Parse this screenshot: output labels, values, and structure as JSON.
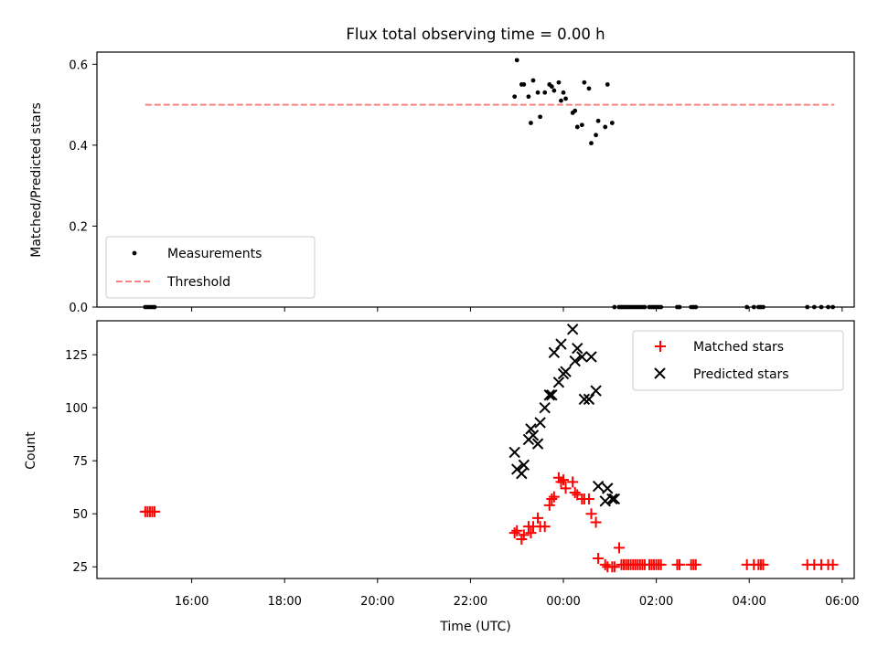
{
  "chart_data": {
    "title": "Flux total observing time = 0.00 h",
    "xlabel": "Time (UTC)",
    "x_tick_labels": [
      "16:00",
      "18:00",
      "20:00",
      "22:00",
      "00:00",
      "02:00",
      "04:00",
      "06:00"
    ],
    "top": {
      "type": "scatter",
      "ylabel": "Matched/Predicted stars",
      "ylim": [
        0,
        0.63
      ],
      "y_tick_labels": [
        "0.0",
        "0.2",
        "0.4",
        "0.6"
      ],
      "legend_position": "lower-left",
      "legend": [
        "Measurements",
        "Threshold"
      ],
      "threshold": {
        "name": "Threshold",
        "value": 0.5,
        "x_range": [
          "15:00",
          "29:50"
        ],
        "color": "#ff8080"
      },
      "measurements": {
        "name": "Measurements",
        "color": "#000000",
        "x": [
          "15:00",
          "15:03",
          "15:06",
          "15:09",
          "15:12",
          "22:57",
          "23:00",
          "23:06",
          "23:09",
          "23:15",
          "23:18",
          "23:21",
          "23:27",
          "23:30",
          "23:36",
          "23:42",
          "23:45",
          "23:48",
          "23:54",
          "23:57",
          "24:00",
          "24:03",
          "24:12",
          "24:15",
          "24:18",
          "24:24",
          "24:27",
          "24:33",
          "24:36",
          "24:42",
          "24:45",
          "24:54",
          "24:57",
          "25:03",
          "25:06",
          "25:12",
          "25:15",
          "25:18",
          "25:21",
          "25:24",
          "25:27",
          "25:30",
          "25:33",
          "25:36",
          "25:39",
          "25:42",
          "25:45",
          "25:51",
          "25:54",
          "25:57",
          "26:00",
          "26:03",
          "26:06",
          "26:27",
          "26:30",
          "26:45",
          "26:48",
          "26:51",
          "27:57",
          "28:06",
          "28:12",
          "28:15",
          "28:18",
          "29:15",
          "29:24",
          "29:33",
          "29:42",
          "29:48"
        ],
        "y": [
          0,
          0,
          0,
          0,
          0,
          0.52,
          0.61,
          0.55,
          0.55,
          0.52,
          0.455,
          0.56,
          0.53,
          0.47,
          0.53,
          0.55,
          0.545,
          0.535,
          0.555,
          0.51,
          0.53,
          0.515,
          0.48,
          0.485,
          0.445,
          0.45,
          0.555,
          0.54,
          0.405,
          0.425,
          0.46,
          0.445,
          0.55,
          0.455,
          0,
          0,
          0,
          0,
          0,
          0,
          0,
          0,
          0,
          0,
          0,
          0,
          0,
          0,
          0,
          0,
          0,
          0,
          0,
          0,
          0,
          0,
          0,
          0,
          0,
          0,
          0,
          0,
          0,
          0,
          0,
          0,
          0,
          0
        ]
      }
    },
    "bottom": {
      "type": "scatter",
      "ylabel": "Count",
      "ylim": [
        19.5,
        141
      ],
      "y_tick_labels": [
        "25",
        "50",
        "75",
        "100",
        "125"
      ],
      "legend_position": "top-right",
      "legend": [
        "Matched stars",
        "Predicted stars"
      ],
      "matched": {
        "name": "Matched stars",
        "color": "#ff0000",
        "x": [
          "15:00",
          "15:03",
          "15:06",
          "15:09",
          "15:12",
          "22:57",
          "23:00",
          "23:06",
          "23:09",
          "23:15",
          "23:18",
          "23:21",
          "23:27",
          "23:30",
          "23:36",
          "23:42",
          "23:45",
          "23:48",
          "23:54",
          "23:57",
          "24:00",
          "24:03",
          "24:12",
          "24:15",
          "24:18",
          "24:24",
          "24:27",
          "24:33",
          "24:36",
          "24:42",
          "24:45",
          "24:54",
          "24:57",
          "25:03",
          "25:06",
          "25:12",
          "25:15",
          "25:18",
          "25:21",
          "25:24",
          "25:27",
          "25:30",
          "25:33",
          "25:36",
          "25:39",
          "25:42",
          "25:45",
          "25:51",
          "25:54",
          "25:57",
          "26:00",
          "26:03",
          "26:06",
          "26:27",
          "26:30",
          "26:45",
          "26:48",
          "26:51",
          "27:57",
          "28:06",
          "28:12",
          "28:15",
          "28:18",
          "29:15",
          "29:24",
          "29:33",
          "29:42",
          "29:48"
        ],
        "y": [
          51,
          51,
          51,
          51,
          51,
          41,
          42,
          38,
          40,
          44,
          41,
          44,
          48,
          44,
          44,
          54,
          57,
          58,
          67,
          65,
          66,
          62,
          65,
          60,
          59,
          57,
          57,
          57,
          50,
          46,
          29,
          26,
          25,
          25,
          25,
          34,
          26,
          26,
          26,
          26,
          26,
          26,
          26,
          26,
          26,
          26,
          26,
          26,
          26,
          26,
          26,
          26,
          26,
          26,
          26,
          26,
          26,
          26,
          26,
          26,
          26,
          26,
          26,
          26,
          26,
          26,
          26,
          26
        ]
      },
      "predicted": {
        "name": "Predicted stars",
        "color": "#000000",
        "x": [
          "22:57",
          "23:00",
          "23:06",
          "23:09",
          "23:15",
          "23:18",
          "23:21",
          "23:27",
          "23:30",
          "23:36",
          "23:42",
          "23:45",
          "23:48",
          "23:54",
          "23:57",
          "24:00",
          "24:03",
          "24:12",
          "24:15",
          "24:18",
          "24:24",
          "24:27",
          "24:33",
          "24:36",
          "24:42",
          "24:45",
          "24:54",
          "24:57",
          "25:03",
          "25:06"
        ],
        "y": [
          79,
          71,
          69,
          73,
          85,
          90,
          87,
          83,
          93,
          100,
          106,
          106,
          126,
          112,
          130,
          116,
          117,
          137,
          122,
          128,
          124,
          104,
          104,
          124,
          108,
          63,
          56,
          62,
          57,
          57
        ]
      }
    }
  }
}
